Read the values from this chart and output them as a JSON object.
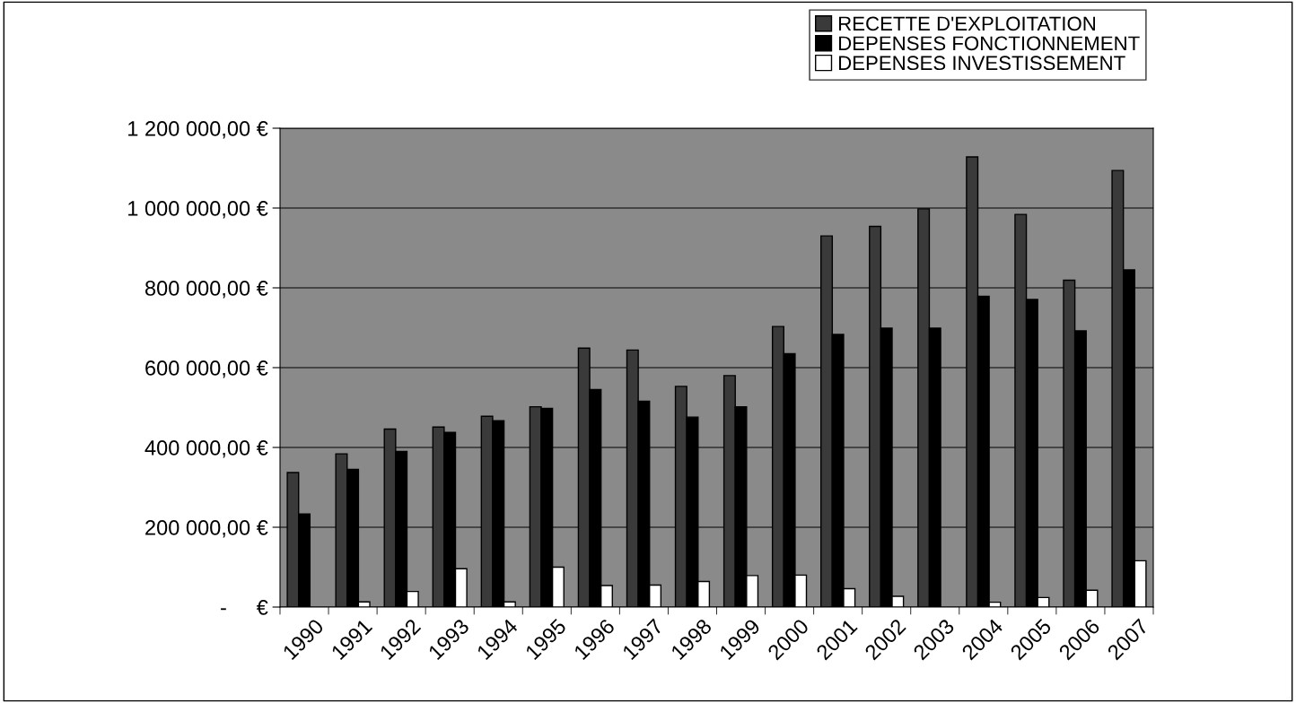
{
  "chart_data": {
    "type": "bar",
    "categories": [
      "1990",
      "1991",
      "1992",
      "1993",
      "1994",
      "1995",
      "1996",
      "1997",
      "1998",
      "1999",
      "2000",
      "2001",
      "2002",
      "2003",
      "2004",
      "2005",
      "2006",
      "2007"
    ],
    "series": [
      {
        "name": "RECETTE D'EXPLOITATION",
        "color": "#3a3a3a",
        "values": [
          337000,
          384000,
          446000,
          451000,
          478000,
          502000,
          649000,
          644000,
          553000,
          580000,
          703000,
          930000,
          954000,
          998000,
          1128000,
          984000,
          819000,
          1094000
        ]
      },
      {
        "name": "DEPENSES FONCTIONNEMENT",
        "color": "#000000",
        "values": [
          233000,
          345000,
          390000,
          438000,
          467000,
          498000,
          545000,
          516000,
          476000,
          502000,
          635000,
          683000,
          699000,
          699000,
          779000,
          771000,
          692000,
          845000
        ]
      },
      {
        "name": "DEPENSES INVESTISSEMENT",
        "color": "#ffffff",
        "values": [
          null,
          13000,
          39000,
          96000,
          13000,
          100000,
          54000,
          55000,
          64000,
          79000,
          80000,
          46000,
          27000,
          null,
          12000,
          24000,
          42000,
          116000
        ]
      }
    ],
    "ylim": [
      0,
      1200000
    ],
    "yticks": [
      {
        "value": 0,
        "label": "-     €"
      },
      {
        "value": 200000,
        "label": "200 000,00 €"
      },
      {
        "value": 400000,
        "label": "400 000,00 €"
      },
      {
        "value": 600000,
        "label": "600 000,00 €"
      },
      {
        "value": 800000,
        "label": "800 000,00 €"
      },
      {
        "value": 1000000,
        "label": "1 000 000,00 €"
      },
      {
        "value": 1200000,
        "label": "1 200 000,00 €"
      }
    ],
    "grid": "y",
    "legend": "top right"
  }
}
